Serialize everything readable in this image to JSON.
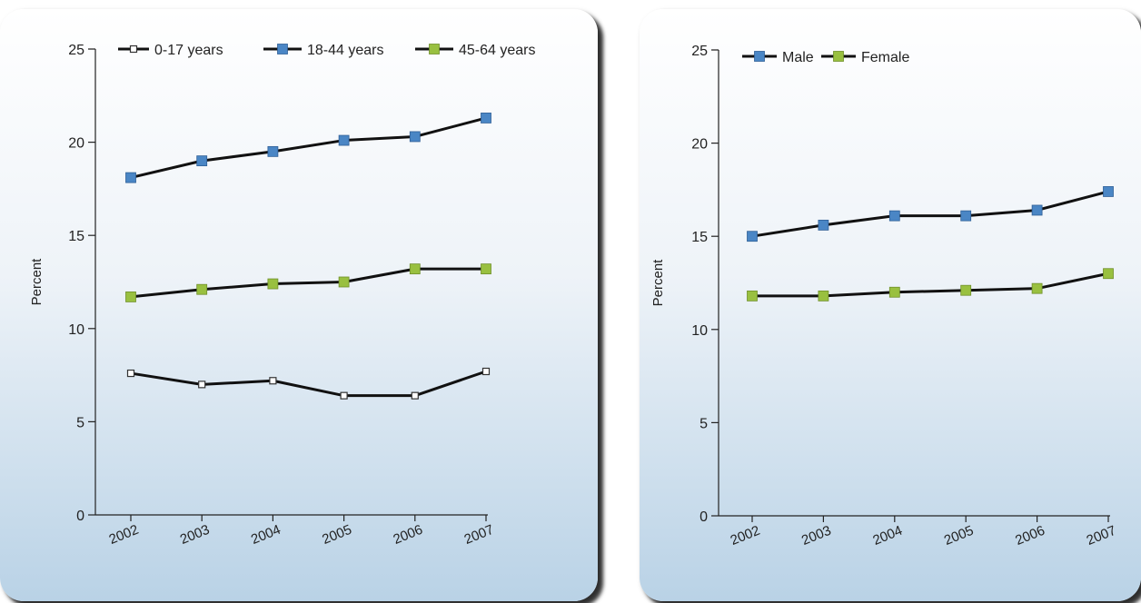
{
  "colors": {
    "line": "#111111",
    "marker_0_17": "#ffffff",
    "marker_18_44": "#4a86c5",
    "marker_45_64": "#99c040",
    "marker_male": "#4a86c5",
    "marker_female": "#99c040"
  },
  "chart_data": [
    {
      "type": "line",
      "ylabel": "Percent",
      "xlabel": "",
      "ylim": [
        0,
        25
      ],
      "yticks": [
        "0",
        "5",
        "10",
        "15",
        "20",
        "25"
      ],
      "categories": [
        "2002",
        "2003",
        "2004",
        "2005",
        "2006",
        "2007"
      ],
      "legend_position": "top",
      "grid": false,
      "series": [
        {
          "name": "0-17 years",
          "values": [
            7.6,
            7.0,
            7.2,
            6.4,
            6.4,
            7.7
          ]
        },
        {
          "name": "18-44 years",
          "values": [
            18.1,
            19.0,
            19.5,
            20.1,
            20.3,
            21.3
          ]
        },
        {
          "name": "45-64 years",
          "values": [
            11.7,
            12.1,
            12.4,
            12.5,
            13.2,
            13.2
          ]
        }
      ]
    },
    {
      "type": "line",
      "ylabel": "Percent",
      "xlabel": "",
      "ylim": [
        0,
        25
      ],
      "yticks": [
        "0",
        "5",
        "10",
        "15",
        "20",
        "25"
      ],
      "categories": [
        "2002",
        "2003",
        "2004",
        "2005",
        "2006",
        "2007"
      ],
      "legend_position": "top-left",
      "grid": false,
      "series": [
        {
          "name": "Male",
          "values": [
            15.0,
            15.6,
            16.1,
            16.1,
            16.4,
            17.4
          ]
        },
        {
          "name": "Female",
          "values": [
            11.8,
            11.8,
            12.0,
            12.1,
            12.2,
            13.0
          ]
        }
      ]
    }
  ]
}
